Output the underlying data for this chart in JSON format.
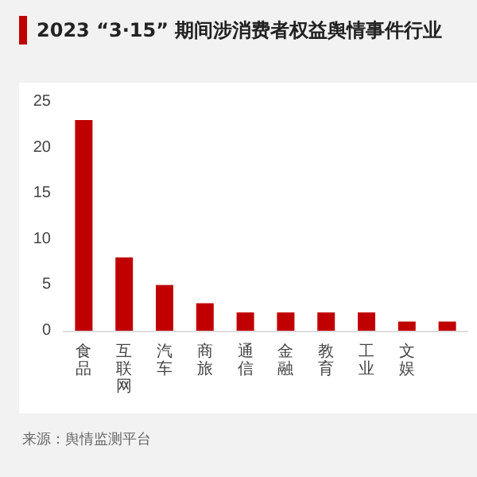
{
  "chart_data": {
    "type": "bar",
    "title": "2023 “3·15” 期间涉消费者权益舆情事件行业",
    "categories": [
      "食品",
      "互联网",
      "汽车",
      "商旅",
      "通信",
      "金融",
      "教育",
      "工业",
      "文娱",
      null
    ],
    "values": [
      23,
      8,
      5,
      3,
      2,
      2,
      2,
      2,
      1,
      1
    ],
    "color": "#c00000",
    "ylim": [
      0,
      25
    ],
    "yticks": [
      0,
      5,
      10,
      15,
      20,
      25
    ],
    "grid": false,
    "annotations": [
      "来源：舆情监测平台"
    ]
  }
}
